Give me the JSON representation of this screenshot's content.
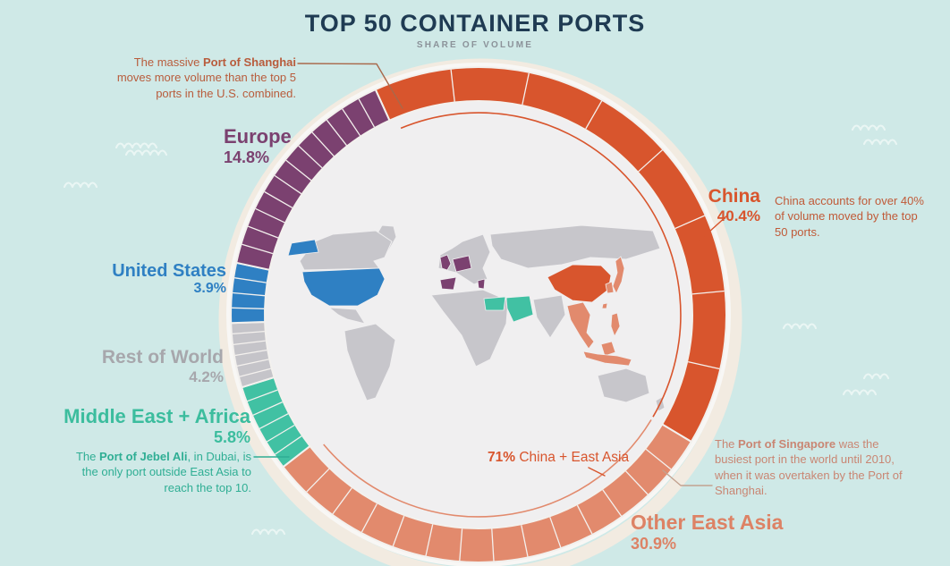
{
  "title": "TOP 50 CONTAINER PORTS",
  "subtitle": "SHARE OF VOLUME",
  "colors": {
    "background": "#cfe9e7",
    "title_text": "#1f3b53",
    "subtitle_text": "#8b9299",
    "inner_circle": "#f0eff0",
    "map_land": "#c7c6cb",
    "map_border": "#f0eff0",
    "halo": "#f2ebe1",
    "tick": "#f4f1ee",
    "wave": "#eaf6f4",
    "annotation_rust": "#b85c3c",
    "annotation_orange": "#c05a38",
    "annotation_salmon": "#c98673",
    "annotation_teal": "#2fae94",
    "leader_tan": "#c2a290",
    "leader_rust": "#a9684a"
  },
  "chart_data": {
    "type": "pie",
    "variant": "donut-ring-with-port-ticks",
    "title": "TOP 50 CONTAINER PORTS",
    "subtitle": "SHARE OF VOLUME",
    "unit": "percent share of volume",
    "ports_total": 50,
    "start_angle_deg": -24.6,
    "segments": [
      {
        "label": "China",
        "value": 40.4,
        "pct_label": "40.4%",
        "color": "#d8552d",
        "label_color": "#d8552d",
        "port_ticks": 8
      },
      {
        "label": "Other East Asia",
        "value": 30.9,
        "pct_label": "30.9%",
        "color": "#e28a6d",
        "label_color": "#dd8265",
        "port_ticks": 14
      },
      {
        "label": "Middle East + Africa",
        "value": 5.8,
        "pct_label": "5.8%",
        "color": "#41c1a3",
        "label_color": "#3cbd9e",
        "port_ticks": 6
      },
      {
        "label": "Rest of World",
        "value": 4.2,
        "pct_label": "4.2%",
        "color": "#c5c4c9",
        "label_color": "#a7a7ac",
        "port_ticks": 6
      },
      {
        "label": "United States",
        "value": 3.9,
        "pct_label": "3.9%",
        "color": "#2f80c3",
        "label_color": "#2f80c3",
        "port_ticks": 4
      },
      {
        "label": "Europe",
        "value": 14.8,
        "pct_label": "14.8%",
        "color": "#7b4170",
        "label_color": "#7b4170",
        "port_ticks": 12
      }
    ],
    "combined_callout": {
      "bold": "71%",
      "rest": " China + East Asia",
      "value": 71.3,
      "spans": [
        "China",
        "Other East Asia"
      ]
    }
  },
  "annotations": {
    "shanghai": {
      "pre": "The massive ",
      "bold": "Port of Shanghai",
      "post": " moves more volume than the top 5 ports in the U.S. combined."
    },
    "china": {
      "text": "China accounts for over 40% of volume moved by the top 50 ports."
    },
    "singapore": {
      "pre": "The ",
      "bold": "Port of Singapore",
      "post": " was the busiest port in the world until 2010, when it was overtaken by the Port of Shanghai."
    },
    "jebel_ali": {
      "pre": "The ",
      "bold": "Port of Jebel Ali",
      "post": ", in Dubai, is the only port outside East Asia to reach the top 10."
    }
  }
}
